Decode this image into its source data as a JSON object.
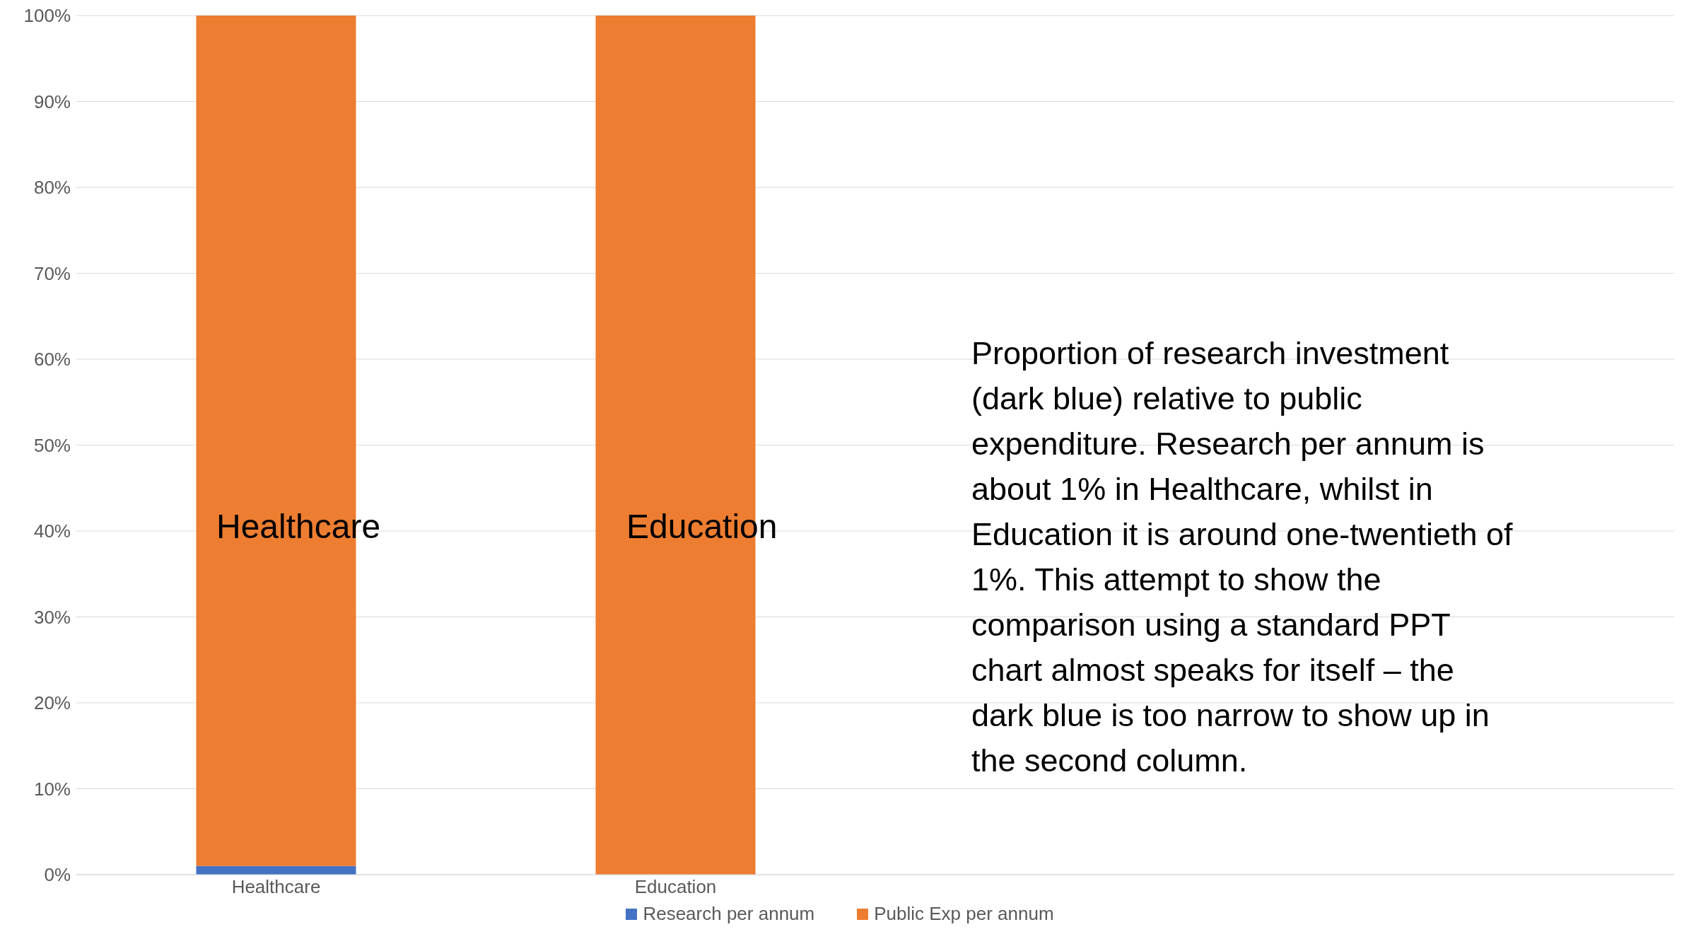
{
  "chart_data": {
    "type": "bar",
    "stacked": true,
    "categories": [
      "Healthcare",
      "Education",
      null,
      null
    ],
    "series": [
      {
        "name": "Research per annum",
        "color": "#4472c4",
        "values": [
          1,
          0,
          null,
          null
        ]
      },
      {
        "name": "Public Exp per annum",
        "color": "#ed7d31",
        "values": [
          99,
          100,
          null,
          null
        ]
      }
    ],
    "ylim": [
      0,
      100
    ],
    "yticks": [
      {
        "value": 0,
        "label": "0%"
      },
      {
        "value": 10,
        "label": "10%"
      },
      {
        "value": 20,
        "label": "20%"
      },
      {
        "value": 30,
        "label": "30%"
      },
      {
        "value": 40,
        "label": "40%"
      },
      {
        "value": 50,
        "label": "50%"
      },
      {
        "value": 60,
        "label": "60%"
      },
      {
        "value": 70,
        "label": "70%"
      },
      {
        "value": 80,
        "label": "80%"
      },
      {
        "value": 90,
        "label": "90%"
      },
      {
        "value": 100,
        "label": "100%"
      }
    ],
    "grid": "y",
    "legend": "bottom",
    "annotations": [
      "Healthcare",
      "Education",
      "Proportion of research investment (dark blue) relative to public expenditure.  Research per annum is about 1% in Healthcare, whilst in Education it is around one-twentieth of 1%. This attempt to show the comparison using a standard PPT chart almost speaks for itself – the dark blue is too narrow to show up in the second column."
    ]
  }
}
